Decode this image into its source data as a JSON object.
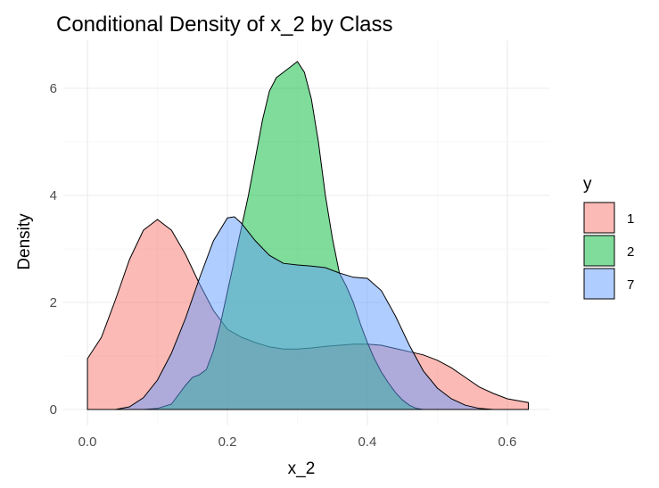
{
  "chart_data": {
    "type": "area",
    "title": "Conditional Density of x_2 by Class",
    "xlabel": "x_2",
    "ylabel": "Density",
    "xlim": [
      -0.0345,
      0.66
    ],
    "ylim": [
      -0.3,
      6.9
    ],
    "x_ticks": [
      0.0,
      0.2,
      0.4,
      0.6
    ],
    "x_tick_labels": [
      "0.0",
      "0.2",
      "0.4",
      "0.6"
    ],
    "y_ticks": [
      0,
      2,
      4,
      6
    ],
    "y_tick_labels": [
      "0",
      "2",
      "4",
      "6"
    ],
    "x_minor": [
      0.1,
      0.3,
      0.5
    ],
    "y_minor": [
      1,
      3,
      5
    ],
    "grid": true,
    "legend": {
      "title": "y",
      "placement": "right"
    },
    "series": [
      {
        "name": "1",
        "color": "#F8766D",
        "points": [
          [
            0.0,
            0.95
          ],
          [
            0.02,
            1.35
          ],
          [
            0.04,
            2.05
          ],
          [
            0.06,
            2.8
          ],
          [
            0.08,
            3.35
          ],
          [
            0.1,
            3.55
          ],
          [
            0.12,
            3.35
          ],
          [
            0.14,
            2.9
          ],
          [
            0.16,
            2.35
          ],
          [
            0.18,
            1.85
          ],
          [
            0.2,
            1.5
          ],
          [
            0.22,
            1.35
          ],
          [
            0.24,
            1.25
          ],
          [
            0.26,
            1.17
          ],
          [
            0.28,
            1.13
          ],
          [
            0.3,
            1.13
          ],
          [
            0.32,
            1.15
          ],
          [
            0.34,
            1.18
          ],
          [
            0.36,
            1.2
          ],
          [
            0.38,
            1.22
          ],
          [
            0.4,
            1.22
          ],
          [
            0.42,
            1.2
          ],
          [
            0.44,
            1.14
          ],
          [
            0.46,
            1.08
          ],
          [
            0.48,
            1.02
          ],
          [
            0.5,
            0.92
          ],
          [
            0.52,
            0.78
          ],
          [
            0.54,
            0.6
          ],
          [
            0.56,
            0.42
          ],
          [
            0.58,
            0.3
          ],
          [
            0.6,
            0.2
          ],
          [
            0.63,
            0.13
          ]
        ]
      },
      {
        "name": "2",
        "color": "#00BA38",
        "points": [
          [
            0.08,
            0.0
          ],
          [
            0.1,
            0.02
          ],
          [
            0.12,
            0.1
          ],
          [
            0.14,
            0.45
          ],
          [
            0.15,
            0.6
          ],
          [
            0.16,
            0.65
          ],
          [
            0.17,
            0.75
          ],
          [
            0.18,
            1.1
          ],
          [
            0.19,
            1.6
          ],
          [
            0.2,
            2.2
          ],
          [
            0.21,
            2.8
          ],
          [
            0.22,
            3.4
          ],
          [
            0.23,
            4.0
          ],
          [
            0.24,
            4.7
          ],
          [
            0.25,
            5.4
          ],
          [
            0.26,
            5.95
          ],
          [
            0.27,
            6.2
          ],
          [
            0.28,
            6.3
          ],
          [
            0.29,
            6.4
          ],
          [
            0.3,
            6.5
          ],
          [
            0.31,
            6.3
          ],
          [
            0.32,
            5.8
          ],
          [
            0.33,
            5.0
          ],
          [
            0.34,
            4.0
          ],
          [
            0.35,
            3.2
          ],
          [
            0.36,
            2.55
          ],
          [
            0.37,
            2.3
          ],
          [
            0.38,
            2.0
          ],
          [
            0.39,
            1.6
          ],
          [
            0.4,
            1.25
          ],
          [
            0.41,
            0.95
          ],
          [
            0.42,
            0.7
          ],
          [
            0.43,
            0.5
          ],
          [
            0.44,
            0.32
          ],
          [
            0.45,
            0.18
          ],
          [
            0.46,
            0.08
          ],
          [
            0.47,
            0.02
          ],
          [
            0.48,
            0.0
          ]
        ]
      },
      {
        "name": "7",
        "color": "#619CFF",
        "points": [
          [
            0.04,
            0.0
          ],
          [
            0.06,
            0.05
          ],
          [
            0.08,
            0.22
          ],
          [
            0.1,
            0.55
          ],
          [
            0.12,
            1.05
          ],
          [
            0.14,
            1.7
          ],
          [
            0.16,
            2.45
          ],
          [
            0.18,
            3.15
          ],
          [
            0.2,
            3.58
          ],
          [
            0.21,
            3.6
          ],
          [
            0.22,
            3.48
          ],
          [
            0.24,
            3.15
          ],
          [
            0.26,
            2.88
          ],
          [
            0.28,
            2.73
          ],
          [
            0.3,
            2.7
          ],
          [
            0.32,
            2.68
          ],
          [
            0.34,
            2.65
          ],
          [
            0.36,
            2.55
          ],
          [
            0.38,
            2.47
          ],
          [
            0.4,
            2.45
          ],
          [
            0.42,
            2.22
          ],
          [
            0.44,
            1.75
          ],
          [
            0.46,
            1.2
          ],
          [
            0.48,
            0.72
          ],
          [
            0.5,
            0.4
          ],
          [
            0.52,
            0.2
          ],
          [
            0.54,
            0.08
          ],
          [
            0.56,
            0.02
          ],
          [
            0.58,
            0.0
          ]
        ]
      }
    ]
  }
}
